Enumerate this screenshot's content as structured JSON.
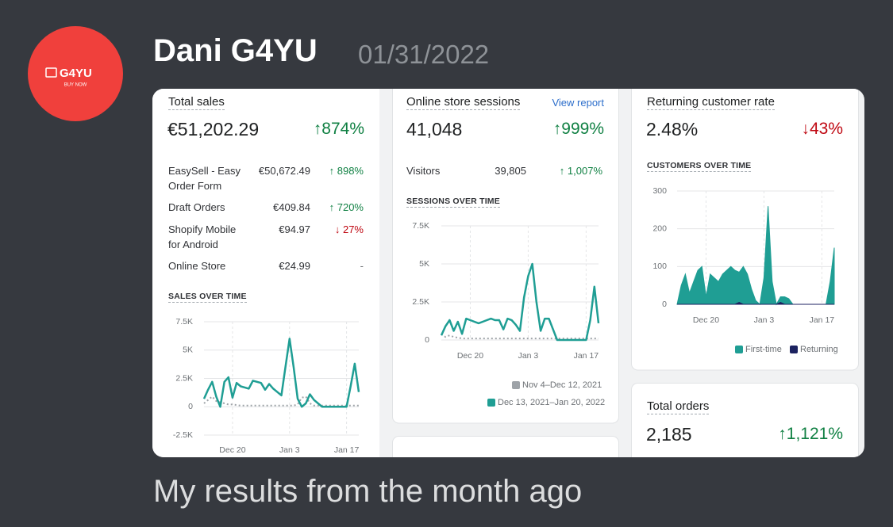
{
  "message": {
    "author": "Dani G4YU",
    "date": "01/31/2022",
    "caption": "My results from the month ago",
    "avatar": {
      "brand": "G4YU",
      "tagline": "BUY NOW"
    }
  },
  "dashboard": {
    "total_sales": {
      "title": "Total sales",
      "value": "€51,202.29",
      "change": "↑874%",
      "trend": "up",
      "rows": [
        {
          "label": "EasySell - Easy Order Form",
          "amount": "€50,672.49",
          "change": "↑ 898%",
          "trend": "up"
        },
        {
          "label": "Draft Orders",
          "amount": "€409.84",
          "change": "↑ 720%",
          "trend": "up"
        },
        {
          "label": "Shopify Mobile for Android",
          "amount": "€94.97",
          "change": "↓ 27%",
          "trend": "down"
        },
        {
          "label": "Online Store",
          "amount": "€24.99",
          "change": "-"
        }
      ],
      "chart": {
        "type": "line",
        "title": "SALES OVER TIME",
        "categories": [
          null,
          null,
          null,
          null,
          null,
          null,
          null,
          "Dec 20",
          null,
          null,
          null,
          null,
          null,
          null,
          null,
          null,
          null,
          null,
          null,
          null,
          null,
          "Jan 3",
          null,
          null,
          null,
          null,
          null,
          null,
          null,
          null,
          null,
          null,
          null,
          null,
          null,
          "Jan 17",
          null,
          null,
          null
        ],
        "ylim": [
          -2500,
          7500
        ],
        "yticks": [
          {
            "value": -2500,
            "label": "-2.5K"
          },
          0,
          {
            "value": 2500,
            "label": "2.5K"
          },
          {
            "value": 5000,
            "label": "5K"
          },
          {
            "value": 7500,
            "label": "7.5K"
          }
        ],
        "grid": true,
        "series": [
          {
            "color": "#9ea3a8",
            "style": "dotted",
            "values": [
              300,
              600,
              900,
              500,
              400,
              300,
              200,
              200,
              150,
              100,
              100,
              100,
              100,
              100,
              100,
              100,
              100,
              100,
              100,
              100,
              100,
              100,
              100,
              200,
              800,
              900,
              300,
              100,
              100,
              100,
              100,
              100,
              100,
              100,
              100,
              100,
              100,
              100,
              100
            ]
          },
          {
            "color": "#1f9e94",
            "values": [
              700,
              1500,
              2200,
              900,
              0,
              2200,
              2600,
              800,
              2100,
              1800,
              1700,
              1600,
              2300,
              2200,
              2100,
              1500,
              2000,
              1600,
              1300,
              1000,
              3500,
              6000,
              3500,
              700,
              0,
              300,
              1100,
              600,
              300,
              0,
              0,
              0,
              0,
              0,
              0,
              0,
              1800,
              3800,
              1300
            ]
          }
        ]
      }
    },
    "online_store_sessions": {
      "title": "Online store sessions",
      "link": "View report",
      "value": "41,048",
      "change": "↑999%",
      "trend": "up",
      "rows": [
        {
          "label": "Visitors",
          "amount": "39,805",
          "change": "↑ 1,007%",
          "trend": "up"
        }
      ],
      "chart": {
        "type": "line",
        "title": "SESSIONS OVER TIME",
        "categories": [
          null,
          null,
          null,
          null,
          null,
          null,
          null,
          "Dec 20",
          null,
          null,
          null,
          null,
          null,
          null,
          null,
          null,
          null,
          null,
          null,
          null,
          null,
          "Jan 3",
          null,
          null,
          null,
          null,
          null,
          null,
          null,
          null,
          null,
          null,
          null,
          null,
          null,
          "Jan 17",
          null,
          null,
          null
        ],
        "ylim": [
          0,
          7500
        ],
        "yticks": [
          0,
          {
            "value": 2500,
            "label": "2.5K"
          },
          {
            "value": 5000,
            "label": "5K"
          },
          {
            "value": 7500,
            "label": "7.5K"
          }
        ],
        "grid": true,
        "series": [
          {
            "name": "Nov 4–Dec 12, 2021",
            "color": "#9ea3a8",
            "style": "dotted",
            "values": [
              400,
              200,
              300,
              200,
              150,
              100,
              100,
              100,
              100,
              100,
              100,
              100,
              100,
              100,
              100,
              100,
              100,
              100,
              100,
              100,
              100,
              100,
              100,
              100,
              100,
              100,
              100,
              100,
              100,
              100,
              100,
              100,
              100,
              100,
              100,
              100,
              100,
              100,
              100
            ]
          },
          {
            "name": "Dec 13, 2021–Jan 20, 2022",
            "color": "#1f9e94",
            "values": [
              300,
              900,
              1300,
              600,
              1200,
              400,
              1400,
              1300,
              1200,
              1100,
              1200,
              1300,
              1400,
              1300,
              1300,
              700,
              1400,
              1300,
              1000,
              600,
              2800,
              4200,
              5000,
              2500,
              600,
              1400,
              1400,
              700,
              0,
              0,
              0,
              0,
              0,
              0,
              0,
              0,
              1300,
              3500,
              1100
            ]
          }
        ]
      }
    },
    "returning_customer_rate": {
      "title": "Returning customer rate",
      "value": "2.48%",
      "change": "↓43%",
      "trend": "down",
      "chart": {
        "type": "area",
        "title": "CUSTOMERS OVER TIME",
        "categories": [
          null,
          null,
          null,
          null,
          null,
          null,
          null,
          "Dec 20",
          null,
          null,
          null,
          null,
          null,
          null,
          null,
          null,
          null,
          null,
          null,
          null,
          null,
          "Jan 3",
          null,
          null,
          null,
          null,
          null,
          null,
          null,
          null,
          null,
          null,
          null,
          null,
          null,
          "Jan 17",
          null,
          null,
          null
        ],
        "ylim": [
          0,
          300
        ],
        "yticks": [
          0,
          100,
          200,
          300
        ],
        "grid": true,
        "series": [
          {
            "name": "First-time",
            "color": "#1f9e94",
            "values": [
              0,
              50,
              80,
              30,
              60,
              90,
              100,
              20,
              80,
              70,
              60,
              80,
              90,
              100,
              90,
              85,
              100,
              80,
              40,
              10,
              0,
              70,
              260,
              60,
              0,
              20,
              20,
              15,
              0,
              0,
              0,
              0,
              0,
              0,
              0,
              0,
              0,
              60,
              150
            ]
          },
          {
            "name": "Returning",
            "color": "#1c2260",
            "values": [
              0,
              0,
              0,
              0,
              0,
              0,
              0,
              0,
              0,
              0,
              0,
              0,
              0,
              0,
              0,
              5,
              0,
              0,
              0,
              0,
              0,
              0,
              0,
              0,
              0,
              5,
              0,
              0,
              0,
              0,
              0,
              0,
              0,
              0,
              0,
              0,
              0,
              0,
              0
            ]
          }
        ]
      }
    },
    "total_orders": {
      "title": "Total orders",
      "value": "2,185",
      "change": "↑1,121%",
      "trend": "up"
    }
  }
}
